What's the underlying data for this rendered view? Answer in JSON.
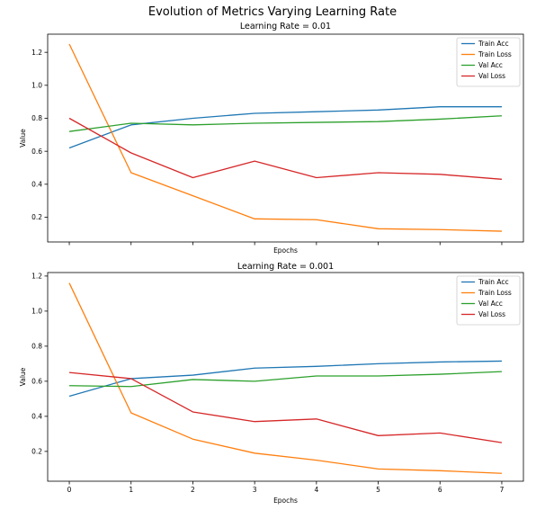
{
  "figure": {
    "title": "Evolution of Metrics Varying Learning Rate"
  },
  "chart_data": [
    {
      "type": "line",
      "title": "Learning Rate = 0.01",
      "xlabel": "Epochs",
      "ylabel": "Value",
      "x": [
        0,
        1,
        2,
        3,
        4,
        5,
        6,
        7
      ],
      "xlim": [
        -0.35,
        7.35
      ],
      "ylim": [
        0.05,
        1.31
      ],
      "yticks": [
        0.2,
        0.4,
        0.6,
        0.8,
        1.0,
        1.2
      ],
      "ytick_labels": [
        "0.2",
        "0.4",
        "0.6",
        "0.8",
        "1.0",
        "1.2"
      ],
      "xtick_labels": [],
      "grid": false,
      "legend": "top-right",
      "series": [
        {
          "name": "Train Acc",
          "color": "#1f77b4",
          "values": [
            0.62,
            0.76,
            0.8,
            0.83,
            0.84,
            0.85,
            0.87,
            0.87
          ]
        },
        {
          "name": "Train Loss",
          "color": "#ff7f0e",
          "values": [
            1.25,
            0.47,
            0.33,
            0.19,
            0.185,
            0.13,
            0.125,
            0.115
          ]
        },
        {
          "name": "Val Acc",
          "color": "#2ca02c",
          "values": [
            0.72,
            0.77,
            0.76,
            0.77,
            0.775,
            0.78,
            0.795,
            0.815
          ]
        },
        {
          "name": "Val Loss",
          "color": "#d62728",
          "values": [
            0.8,
            0.59,
            0.44,
            0.54,
            0.44,
            0.47,
            0.46,
            0.43
          ]
        }
      ]
    },
    {
      "type": "line",
      "title": "Learning Rate = 0.001",
      "xlabel": "Epochs",
      "ylabel": "Value",
      "x": [
        0,
        1,
        2,
        3,
        4,
        5,
        6,
        7
      ],
      "xlim": [
        -0.35,
        7.35
      ],
      "ylim": [
        0.03,
        1.22
      ],
      "yticks": [
        0.2,
        0.4,
        0.6,
        0.8,
        1.0,
        1.2
      ],
      "ytick_labels": [
        "0.2",
        "0.4",
        "0.6",
        "0.8",
        "1.0",
        "1.2"
      ],
      "xtick_labels": [
        "0",
        "1",
        "2",
        "3",
        "4",
        "5",
        "6",
        "7"
      ],
      "grid": false,
      "legend": "top-right",
      "series": [
        {
          "name": "Train Acc",
          "color": "#1f77b4",
          "values": [
            0.515,
            0.615,
            0.635,
            0.675,
            0.685,
            0.7,
            0.71,
            0.715
          ]
        },
        {
          "name": "Train Loss",
          "color": "#ff7f0e",
          "values": [
            1.16,
            0.42,
            0.27,
            0.19,
            0.15,
            0.1,
            0.09,
            0.075
          ]
        },
        {
          "name": "Val Acc",
          "color": "#2ca02c",
          "values": [
            0.575,
            0.57,
            0.61,
            0.6,
            0.63,
            0.63,
            0.64,
            0.655
          ]
        },
        {
          "name": "Val Loss",
          "color": "#d62728",
          "values": [
            0.65,
            0.615,
            0.425,
            0.37,
            0.385,
            0.29,
            0.305,
            0.25
          ]
        }
      ]
    }
  ]
}
